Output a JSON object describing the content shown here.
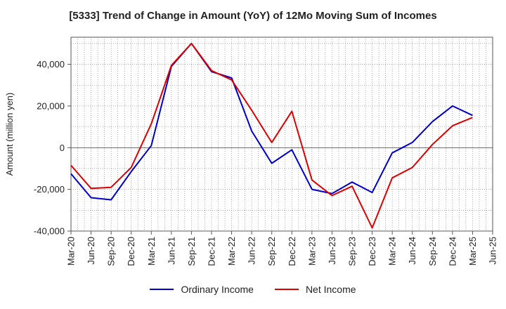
{
  "chart_data": {
    "type": "line",
    "title": "[5333]  Trend of Change in Amount (YoY) of 12Mo Moving Sum of Incomes",
    "ylabel": "Amount (million yen)",
    "xlabel": "",
    "ylim": [
      -40000,
      53000
    ],
    "yticks": [
      -40000,
      -20000,
      0,
      20000,
      40000
    ],
    "ytick_labels": [
      "-40,000",
      "-20,000",
      "0",
      "20,000",
      "40,000"
    ],
    "x": [
      "Mar-20",
      "Jun-20",
      "Sep-20",
      "Dec-20",
      "Mar-21",
      "Jun-21",
      "Sep-21",
      "Dec-21",
      "Mar-22",
      "Jun-22",
      "Sep-22",
      "Dec-22",
      "Mar-23",
      "Jun-23",
      "Sep-23",
      "Dec-23",
      "Mar-24",
      "Jun-24",
      "Sep-24",
      "Dec-24",
      "Mar-25",
      "Jun-25"
    ],
    "grid": true,
    "legend_position": "bottom",
    "series": [
      {
        "name": "Ordinary Income",
        "color": "#0000cc",
        "values": [
          -12500,
          -24000,
          -25000,
          -11500,
          1000,
          39000,
          50000,
          36500,
          33500,
          8000,
          -7500,
          -1000,
          -20000,
          -22000,
          -16500,
          -21500,
          -2500,
          2500,
          12500,
          20000,
          15500,
          null
        ]
      },
      {
        "name": "Net Income",
        "color": "#dd0000",
        "values": [
          -8500,
          -19500,
          -19000,
          -9500,
          11500,
          39500,
          50000,
          37000,
          32500,
          18000,
          2500,
          17500,
          -15500,
          -23000,
          -18500,
          -38500,
          -14500,
          -9500,
          1500,
          10500,
          14500,
          null
        ]
      }
    ]
  }
}
